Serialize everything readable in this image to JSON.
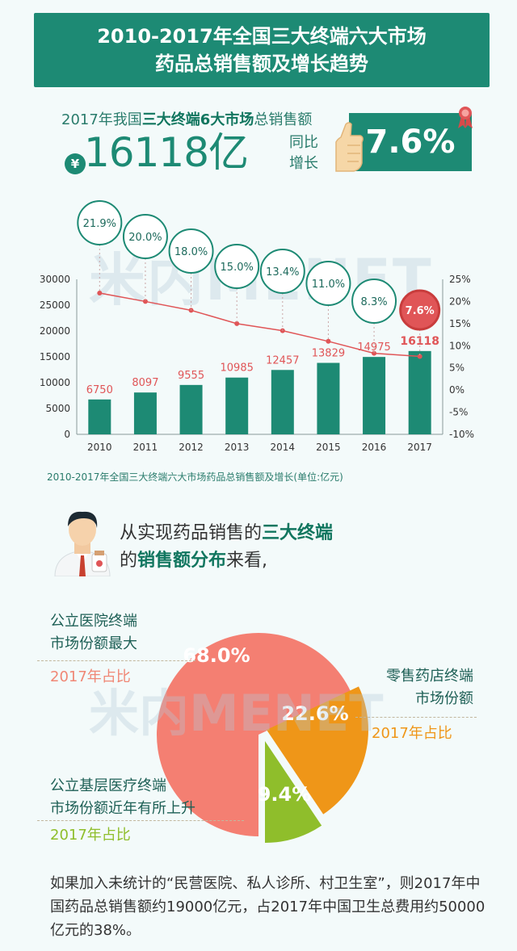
{
  "title": {
    "line1": "2010-2017年全国三大终端六大市场",
    "line2": "药品总销售额及增长趋势"
  },
  "headline": {
    "prefix": "2017年我国",
    "highlight": "三大终端6大市场",
    "suffix": "总销售额",
    "currency_symbol": "¥",
    "total": "16118亿",
    "yoy_label_line1": "同比",
    "yoy_label_line2": "增长",
    "yoy_value": "7.6%"
  },
  "watermark": "米内MENET",
  "chart_data": [
    {
      "type": "bar",
      "categories": [
        "2010",
        "2011",
        "2012",
        "2013",
        "2014",
        "2015",
        "2016",
        "2017"
      ],
      "series": [
        {
          "values": [
            6750,
            8097,
            9555,
            10985,
            12457,
            13829,
            14975,
            16118
          ],
          "axis": "left",
          "kind": "bar"
        },
        {
          "values": [
            21.9,
            20.0,
            18.0,
            15.0,
            13.4,
            11.0,
            8.3,
            7.6
          ],
          "axis": "right",
          "kind": "line",
          "unit": "%"
        }
      ],
      "bar_labels": [
        "6750",
        "8097",
        "9555",
        "10985",
        "12457",
        "13829",
        "14975",
        "16118"
      ],
      "growth_labels": [
        "21.9%",
        "20.0%",
        "18.0%",
        "15.0%",
        "13.4%",
        "11.0%",
        "8.3%",
        "7.6%"
      ],
      "y_left": {
        "min": 0,
        "max": 30000,
        "step": 5000,
        "ticks": [
          "0",
          "5000",
          "10000",
          "15000",
          "20000",
          "25000",
          "30000"
        ]
      },
      "y_right": {
        "min": -10,
        "max": 25,
        "step": 5,
        "ticks": [
          "-10%",
          "-5%",
          "0%",
          "5%",
          "10%",
          "15%",
          "20%",
          "25%"
        ]
      },
      "caption": "2010-2017年全国三大终端六大市场药品总销售额及增长(单位:亿元)",
      "grid": false,
      "colors": {
        "bar": "#1d8a74",
        "line": "#e05557",
        "bar_label": "#e05557",
        "bubble": "#1d8a74",
        "highlight_bubble": "#e05557"
      }
    },
    {
      "type": "pie",
      "categories": [
        "公立医院终端",
        "零售药店终端",
        "公立基层医疗终端"
      ],
      "values": [
        68.0,
        22.6,
        9.4
      ],
      "value_labels": [
        "68.0%",
        "22.6%",
        "9.4%"
      ],
      "colors": [
        "#f47f72",
        "#ef9618",
        "#8fbe2b"
      ]
    }
  ],
  "intro": {
    "line1_prefix": "从实现药品销售的",
    "line1_bold": "三大终端",
    "line2_prefix": "的",
    "line2_bold": "销售额分布",
    "line2_suffix": "来看,"
  },
  "pie_labels": {
    "hospital_line1": "公立医院终端",
    "hospital_line2": "市场份额最大",
    "hospital_year": "2017年占比",
    "retail_line1": "零售药店终端",
    "retail_line2": "市场份额",
    "retail_year": "2017年占比",
    "primary_line1": "公立基层医疗终端",
    "primary_line2": "市场份额近年有所上升",
    "primary_year": "2017年占比"
  },
  "note": "如果加入未统计的“民营医院、私人诊所、村卫生室”，则2017年中国药品总销售额约19000亿元，占2017年中国卫生总费用约50000亿元的38%。"
}
